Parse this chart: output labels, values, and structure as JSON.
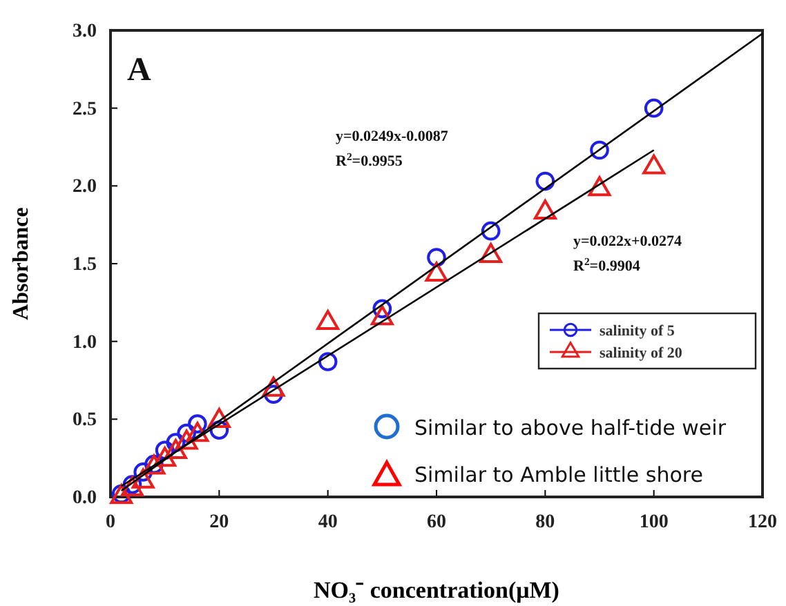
{
  "chart_data": {
    "type": "scatter",
    "xlabel": "NO₃⁻ concentration(μM)",
    "ylabel": "Absorbance",
    "xlim": [
      0,
      120
    ],
    "xticks": [
      0,
      20,
      40,
      60,
      80,
      100,
      120
    ],
    "ylim": [
      0,
      3
    ],
    "yticks": [
      {
        "value": 0,
        "label": "0.0"
      },
      {
        "value": 0.5,
        "label": "0.5"
      },
      {
        "value": 1,
        "label": "1.0"
      },
      {
        "value": 1.5,
        "label": "1.5"
      },
      {
        "value": 2,
        "label": "2.0"
      },
      {
        "value": 2.5,
        "label": "2.5"
      },
      {
        "value": 3,
        "label": "3.0"
      }
    ],
    "grid": false,
    "legend": "right",
    "series": [
      {
        "name": "salinity of 5",
        "marker": "circle",
        "color": "#1f1fe6",
        "x": [
          2,
          4,
          6,
          8,
          10,
          12,
          14,
          16,
          20,
          30,
          40,
          50,
          60,
          70,
          80,
          90,
          100
        ],
        "values": [
          0.02,
          0.08,
          0.16,
          0.21,
          0.3,
          0.35,
          0.41,
          0.47,
          0.43,
          0.66,
          0.87,
          1.21,
          1.54,
          1.71,
          2.03,
          2.23,
          2.5
        ]
      },
      {
        "name": "salinity of 20",
        "marker": "triangle",
        "color": "#e61f1f",
        "x": [
          2,
          4,
          6,
          8,
          10,
          12,
          14,
          16,
          20,
          30,
          40,
          50,
          60,
          70,
          80,
          90,
          100
        ],
        "values": [
          0,
          0.05,
          0.1,
          0.19,
          0.24,
          0.29,
          0.35,
          0.4,
          0.49,
          0.69,
          1.12,
          1.15,
          1.43,
          1.55,
          1.83,
          1.98,
          2.12
        ]
      },
      {
        "type": "line",
        "marker": "none",
        "color": "#000000",
        "x": [
          2,
          120
        ],
        "values": [
          0.04,
          2.98
        ]
      },
      {
        "type": "line",
        "marker": "none",
        "color": "#000000",
        "x": [
          2,
          100
        ],
        "values": [
          0.07,
          2.23
        ]
      }
    ],
    "annotations": [
      "A",
      "y=0.0249x-0.0087",
      "R$^{2}$=0.9955",
      "y=0.022x+0.0274",
      "R$^{2}$=0.9904",
      "Similar to above half-tide weir",
      "Similar to Amble little shore"
    ]
  }
}
